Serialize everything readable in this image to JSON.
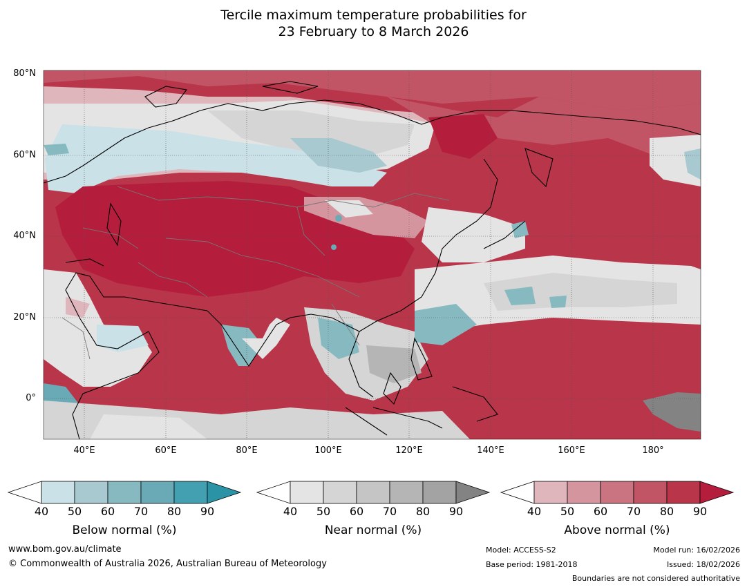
{
  "title": {
    "line1": "Tercile maximum temperature probabilities for",
    "line2": "23 February to 8 March 2026"
  },
  "map": {
    "lat_labels": [
      "80°N",
      "60°N",
      "40°N",
      "20°N",
      "0°"
    ],
    "lon_labels": [
      "40°E",
      "60°E",
      "80°E",
      "100°E",
      "120°E",
      "140°E",
      "160°E",
      "180°"
    ],
    "lat_range": [
      -10,
      80
    ],
    "lon_range": [
      30,
      192
    ]
  },
  "colorbars": [
    {
      "label": "Below normal (%)",
      "ticks": [
        "40",
        "50",
        "60",
        "70",
        "80",
        "90"
      ],
      "colors": [
        "#ffffff",
        "#c9e1e7",
        "#a7c9cf",
        "#87b9c1",
        "#6aaab6",
        "#43a0b0",
        "#2a93a6"
      ]
    },
    {
      "label": "Near normal (%)",
      "ticks": [
        "40",
        "50",
        "60",
        "70",
        "80",
        "90"
      ],
      "colors": [
        "#ffffff",
        "#e4e4e4",
        "#d5d5d5",
        "#c5c5c5",
        "#b5b5b5",
        "#a3a3a3",
        "#838383"
      ]
    },
    {
      "label": "Above normal (%)",
      "ticks": [
        "40",
        "50",
        "60",
        "70",
        "80",
        "90"
      ],
      "colors": [
        "#ffffff",
        "#e0b6bd",
        "#d5959f",
        "#cb7481",
        "#c25565",
        "#b8354a",
        "#b41d3c"
      ]
    }
  ],
  "footer": {
    "website": "www.bom.gov.au/climate",
    "copyright": "© Commonwealth of Australia 2026, Australian Bureau of Meteorology",
    "model": "Model: ACCESS-S2",
    "base_period": "Base period: 1981-2018",
    "model_run": "Model run: 16/02/2026",
    "issued": "Issued: 18/02/2026",
    "disclaimer": "Boundaries are not considered authoritative"
  }
}
